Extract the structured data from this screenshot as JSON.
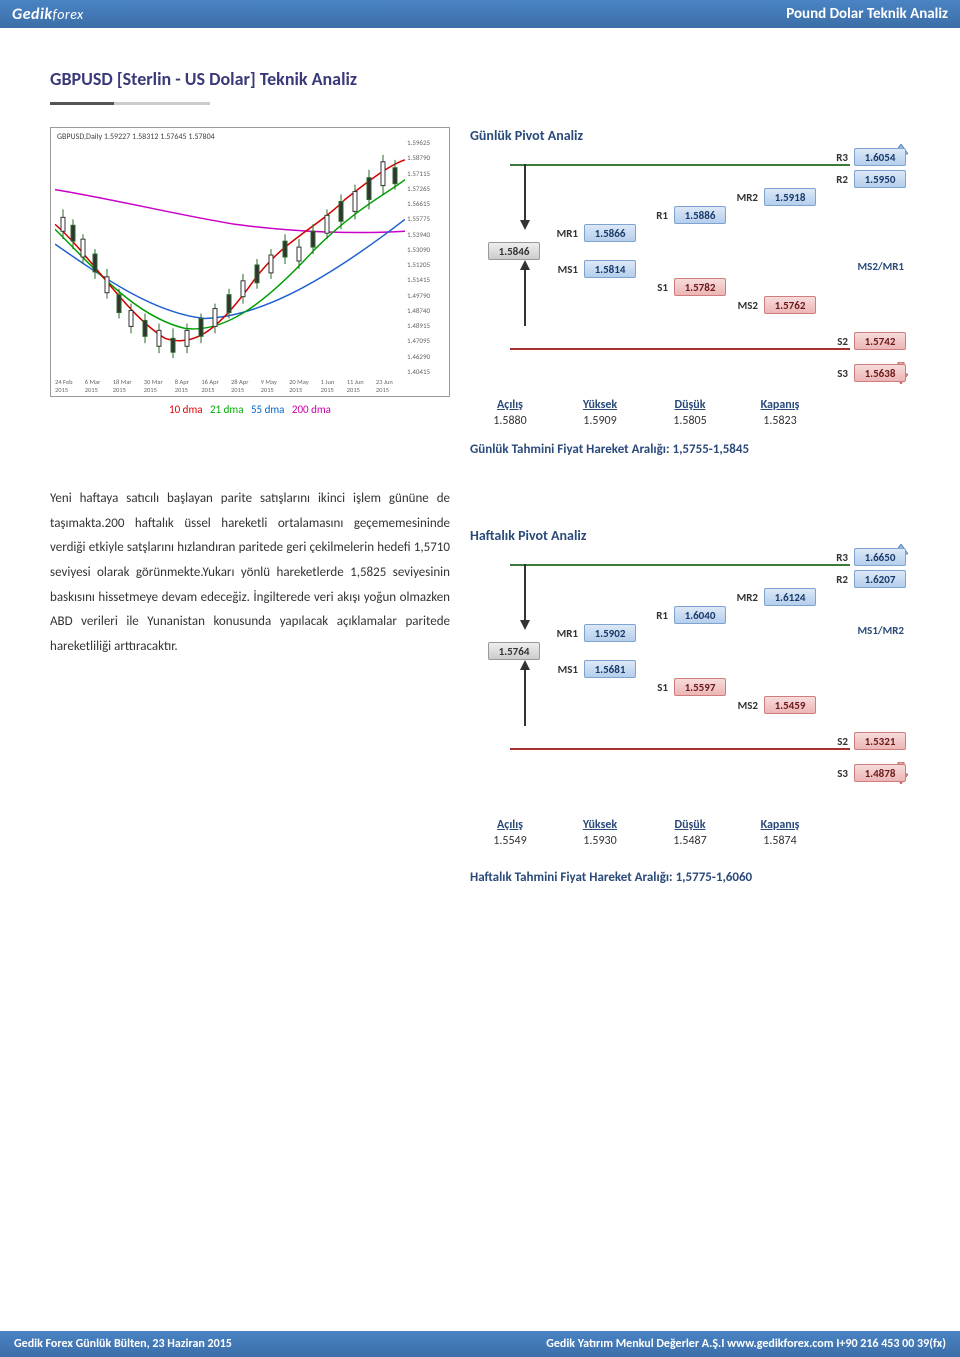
{
  "banner": {
    "logo_a": "Gedik",
    "logo_b": "forex",
    "title": "Pound Dolar Teknik Analiz"
  },
  "page": {
    "title": "GBPUSD [Sterlin - US Dolar] Teknik Analiz"
  },
  "chart": {
    "header": "GBPUSD,Daily 1.59227 1.58312 1.57645 1.57804",
    "y_ticks": [
      "1.59625",
      "1.58790",
      "1.57115",
      "1.57265",
      "1.56615",
      "1.55775",
      "1.53940",
      "1.53090",
      "1.51205",
      "1.51415",
      "1.49790",
      "1.48740",
      "1.48915",
      "1.47095",
      "1.46290",
      "1.40415"
    ],
    "x_ticks": [
      "24 Feb 2015",
      "6 Mar 2015",
      "18 Mar 2015",
      "30 Mar 2015",
      "8 Apr 2015",
      "16 Apr 2015",
      "28 Apr 2015",
      "9 May 2015",
      "20 May 2015",
      "1 Jun 2015",
      "11 Jun 2015",
      "23 Jun 2015"
    ],
    "legend": {
      "dma10": "10 dma",
      "dma21": "21 dma",
      "dma55": "55 dma",
      "dma200": "200 dma"
    }
  },
  "daily_pivot": {
    "title": "Günlük Pivot Analiz",
    "right_note": "MS2/MR1",
    "R3": "1.6054",
    "R2": "1.5950",
    "MR2": "1.5918",
    "R1": "1.5886",
    "MR1": "1.5866",
    "P": "1.5846",
    "MS1": "1.5814",
    "S1": "1.5782",
    "MS2": "1.5762",
    "S2": "1.5742",
    "S3": "1.5638",
    "labels": {
      "R3": "R3",
      "R2": "R2",
      "MR2": "MR2",
      "R1": "R1",
      "MR1": "MR1",
      "MS1": "MS1",
      "S1": "S1",
      "MS2": "MS2",
      "S2": "S2",
      "S3": "S3"
    }
  },
  "daily_ohlc": {
    "labels": {
      "open": "Açılış",
      "high": "Yüksek",
      "low": "Düşük",
      "close": "Kapanış"
    },
    "open": "1.5880",
    "high": "1.5909",
    "low": "1.5805",
    "close": "1.5823",
    "range": "Günlük Tahmini Fiyat Hareket Aralığı: 1,5755-1,5845"
  },
  "body_text": "Yeni haftaya satıcılı başlayan parite satışlarını ikinci işlem gününe de taşımakta.200 haftalık üssel hareketli ortalamasını geçememesininde verdiği etkiyle satşlarını hızlandıran paritede geri çekilmelerin hedefi 1,5710 seviyesi olarak görünmekte.Yukarı yönlü hareketlerde 1,5825 seviyesinin baskısını hissetmeye devam edeceğiz. İngilterede veri akışı yoğun olmazken ABD verileri ile Yunanistan konusunda yapılacak açıklamalar paritede hareketliliği arttıracaktır.",
  "weekly_pivot": {
    "title": "Haftalık Pivot Analiz",
    "right_note": "MS1/MR2",
    "R3": "1.6650",
    "R2": "1.6207",
    "MR2": "1.6124",
    "R1": "1.6040",
    "MR1": "1.5902",
    "P": "1.5764",
    "MS1": "1.5681",
    "S1": "1.5597",
    "MS2": "1.5459",
    "S2": "1.5321",
    "S3": "1.4878",
    "labels": {
      "R3": "R3",
      "R2": "R2",
      "MR2": "MR2",
      "R1": "R1",
      "MR1": "MR1",
      "MS1": "MS1",
      "S1": "S1",
      "MS2": "MS2",
      "S2": "S2",
      "S3": "S3"
    }
  },
  "weekly_ohlc": {
    "labels": {
      "open": "Açılış",
      "high": "Yüksek",
      "low": "Düşük",
      "close": "Kapanış"
    },
    "open": "1.5549",
    "high": "1.5930",
    "low": "1.5487",
    "close": "1.5874",
    "range": "Haftalık Tahmini Fiyat Hareket Aralığı: 1,5775-1,6060"
  },
  "footer": {
    "left": "Gedik Forex Günlük Bülten, 23 Haziran 2015",
    "right": "Gedik Yatırım Menkul Değerler A.Ş.I www.gedikforex.com I+90 216 453 00 39(fx)"
  }
}
